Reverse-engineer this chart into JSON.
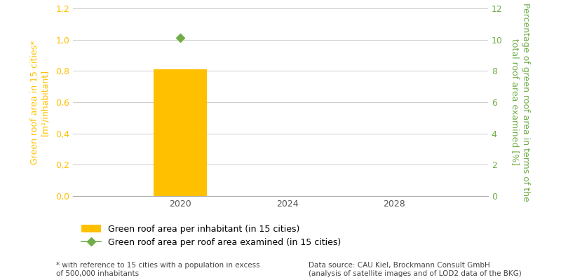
{
  "bar_years": [
    2020
  ],
  "bar_values": [
    0.81
  ],
  "bar_color": "#FFC000",
  "dot_years": [
    2020
  ],
  "dot_values": [
    10.1
  ],
  "dot_color": "#70AD47",
  "dot_marker": "D",
  "left_ylim": [
    0,
    1.2
  ],
  "left_yticks": [
    0.0,
    0.2,
    0.4,
    0.6,
    0.8,
    1.0,
    1.2
  ],
  "left_yticklabels": [
    "0,0",
    "0,2",
    "0,4",
    "0,6",
    "0,8",
    "1,0",
    "1,2"
  ],
  "left_ylabel": "Green roof area in 15 cities*\n[m²/inhabitant]",
  "left_axis_color": "#FFC000",
  "right_ylim": [
    0,
    12
  ],
  "right_yticks": [
    0,
    2,
    4,
    6,
    8,
    10,
    12
  ],
  "right_yticklabels": [
    "0",
    "2",
    "4",
    "6",
    "8",
    "10",
    "12"
  ],
  "right_ylabel": "Percentage of green roof area in terms of the\ntotal roof area examined [%]",
  "right_axis_color": "#70AD47",
  "xtick_years": [
    2020,
    2024,
    2028
  ],
  "xlim": [
    2016.0,
    2031.5
  ],
  "grid_color": "#CCCCCC",
  "background_color": "#FFFFFF",
  "legend_bar_label": "Green roof area per inhabitant (in 15 cities)",
  "legend_dot_label": "Green roof area per roof area examined (in 15 cities)",
  "footnote_left": "* with reference to 15 cities with a population in excess\nof 500,000 inhabitants",
  "footnote_right": "Data source: CAU Kiel, Brockmann Consult GmbH\n(analysis of satellite images and of LOD2 data of the BKG)",
  "bar_width": 2.0
}
